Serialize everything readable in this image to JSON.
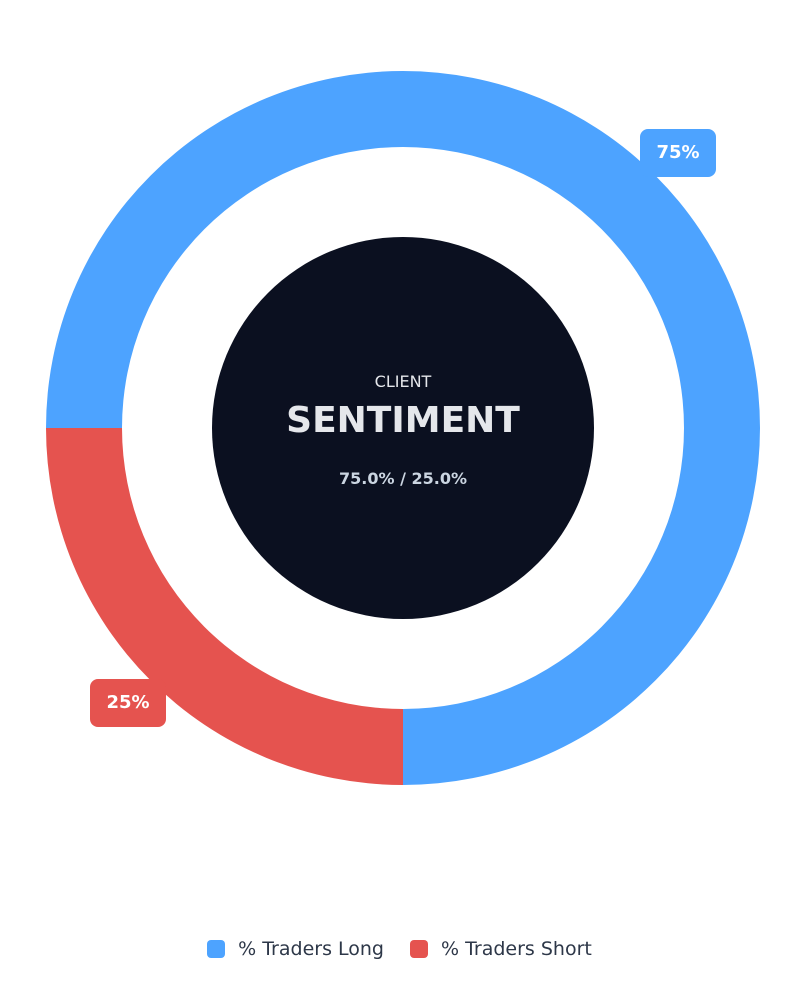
{
  "chart_data": {
    "type": "pie",
    "variant": "donut",
    "categories": [
      "% Traders Long",
      "% Traders Short"
    ],
    "values": [
      75,
      25
    ],
    "data_labels": [
      "75%",
      "25%"
    ],
    "colors": [
      "#4da3ff",
      "#e5534f"
    ],
    "center": {
      "subtitle": "CLIENT",
      "title": "SENTIMENT",
      "values_text": "75.0% / 25.0%",
      "background": "#0b1020"
    },
    "legend_position": "bottom"
  }
}
